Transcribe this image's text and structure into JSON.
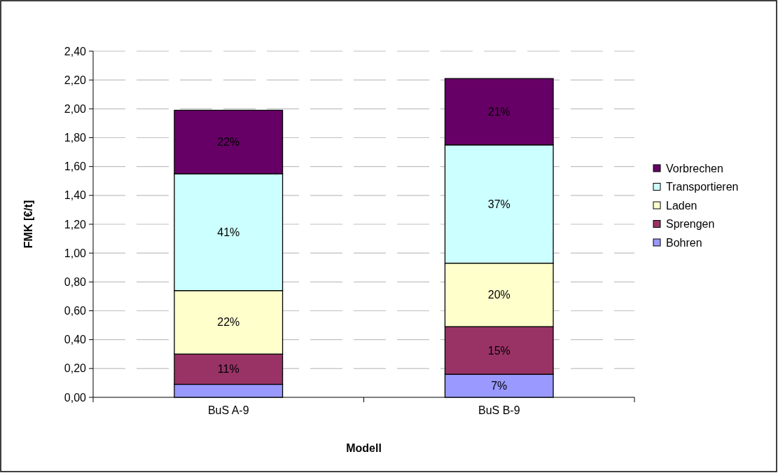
{
  "chart_data": {
    "type": "bar",
    "stacked": true,
    "xlabel": "Modell",
    "ylabel": "FMK [€/t]",
    "categories": [
      "BuS A-9",
      "BuS B-9"
    ],
    "series": [
      {
        "name": "Bohren",
        "color": "#9999ff",
        "values": [
          0.09,
          0.16
        ]
      },
      {
        "name": "Sprengen",
        "color": "#993366",
        "values": [
          0.21,
          0.33
        ]
      },
      {
        "name": "Laden",
        "color": "#ffffcc",
        "values": [
          0.44,
          0.44
        ]
      },
      {
        "name": "Transportieren",
        "color": "#ccffff",
        "values": [
          0.81,
          0.82
        ]
      },
      {
        "name": "Vorbrechen",
        "color": "#660066",
        "values": [
          0.44,
          0.46
        ]
      }
    ],
    "annotations": [
      "11%",
      "22%",
      "41%",
      "22%",
      "7%",
      "15%",
      "20%",
      "37%",
      "21%"
    ],
    "ylim": [
      0,
      2.4
    ],
    "yticks": [
      {
        "value": 0,
        "label": "0,00"
      },
      {
        "value": 0.2,
        "label": "0,20"
      },
      {
        "value": 0.4,
        "label": "0,40"
      },
      {
        "value": 0.6,
        "label": "0,60"
      },
      {
        "value": 0.8,
        "label": "0,80"
      },
      {
        "value": 1,
        "label": "1,00"
      },
      {
        "value": 1.2,
        "label": "1,20"
      },
      {
        "value": 1.4,
        "label": "1,40"
      },
      {
        "value": 1.6,
        "label": "1,60"
      },
      {
        "value": 1.8,
        "label": "1,80"
      },
      {
        "value": 2,
        "label": "2,00"
      },
      {
        "value": 2.2,
        "label": "2,20"
      },
      {
        "value": 2.4,
        "label": "2,40"
      }
    ],
    "grid": "y",
    "legend": "right"
  }
}
